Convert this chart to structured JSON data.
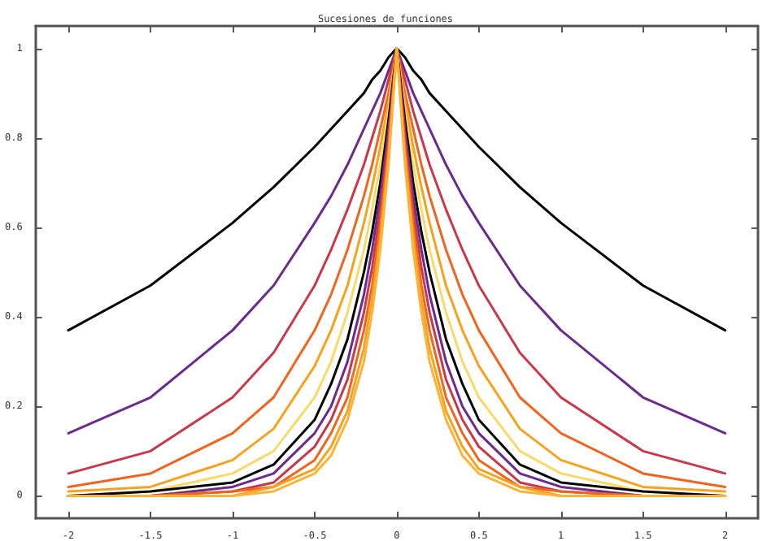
{
  "chart_data": {
    "type": "line",
    "title": "Sucesiones de funciones",
    "x": [
      -2,
      -1.5,
      -1,
      -0.75,
      -0.5,
      -0.4,
      -0.3,
      -0.2,
      -0.15,
      -0.1,
      -0.05,
      0,
      0.05,
      0.1,
      0.15,
      0.2,
      0.3,
      0.4,
      0.5,
      0.75,
      1,
      1.5,
      2
    ],
    "series": [
      {
        "color": "#000000",
        "values": [
          0.37,
          0.47,
          0.61,
          0.69,
          0.78,
          0.82,
          0.86,
          0.9,
          0.93,
          0.95,
          0.98,
          1,
          0.98,
          0.95,
          0.93,
          0.9,
          0.86,
          0.82,
          0.78,
          0.69,
          0.61,
          0.47,
          0.37
        ]
      },
      {
        "color": "#6a2a8e",
        "values": [
          0.14,
          0.22,
          0.37,
          0.47,
          0.61,
          0.67,
          0.74,
          0.82,
          0.86,
          0.9,
          0.95,
          1,
          0.95,
          0.9,
          0.86,
          0.82,
          0.74,
          0.67,
          0.61,
          0.47,
          0.37,
          0.22,
          0.14
        ]
      },
      {
        "color": "#c8384a",
        "values": [
          0.05,
          0.1,
          0.22,
          0.32,
          0.47,
          0.55,
          0.64,
          0.74,
          0.8,
          0.86,
          0.93,
          1,
          0.93,
          0.86,
          0.8,
          0.74,
          0.64,
          0.55,
          0.47,
          0.32,
          0.22,
          0.1,
          0.05
        ]
      },
      {
        "color": "#f0651e",
        "values": [
          0.02,
          0.05,
          0.14,
          0.22,
          0.37,
          0.45,
          0.55,
          0.67,
          0.74,
          0.82,
          0.9,
          1,
          0.9,
          0.82,
          0.74,
          0.67,
          0.55,
          0.45,
          0.37,
          0.22,
          0.14,
          0.05,
          0.02
        ]
      },
      {
        "color": "#f7a21e",
        "values": [
          0.01,
          0.02,
          0.08,
          0.15,
          0.29,
          0.37,
          0.47,
          0.61,
          0.69,
          0.78,
          0.88,
          1,
          0.88,
          0.78,
          0.69,
          0.61,
          0.47,
          0.37,
          0.29,
          0.15,
          0.08,
          0.02,
          0.01
        ]
      },
      {
        "color": "#fbd86a",
        "values": [
          0,
          0.01,
          0.05,
          0.1,
          0.22,
          0.3,
          0.41,
          0.55,
          0.64,
          0.74,
          0.86,
          1,
          0.86,
          0.74,
          0.64,
          0.55,
          0.41,
          0.3,
          0.22,
          0.1,
          0.05,
          0.01,
          0
        ]
      },
      {
        "color": "#000000",
        "values": [
          0,
          0.01,
          0.03,
          0.07,
          0.17,
          0.25,
          0.35,
          0.5,
          0.59,
          0.7,
          0.84,
          1,
          0.84,
          0.7,
          0.59,
          0.5,
          0.35,
          0.25,
          0.17,
          0.07,
          0.03,
          0.01,
          0
        ]
      },
      {
        "color": "#6a2a8e",
        "values": [
          0,
          0,
          0.02,
          0.05,
          0.14,
          0.2,
          0.3,
          0.45,
          0.55,
          0.67,
          0.82,
          1,
          0.82,
          0.67,
          0.55,
          0.45,
          0.3,
          0.2,
          0.14,
          0.05,
          0.02,
          0,
          0
        ]
      },
      {
        "color": "#c8384a",
        "values": [
          0,
          0,
          0.01,
          0.03,
          0.11,
          0.17,
          0.26,
          0.41,
          0.51,
          0.64,
          0.8,
          1,
          0.8,
          0.64,
          0.51,
          0.41,
          0.26,
          0.17,
          0.11,
          0.03,
          0.01,
          0,
          0
        ]
      },
      {
        "color": "#f0651e",
        "values": [
          0,
          0,
          0.01,
          0.02,
          0.08,
          0.14,
          0.22,
          0.37,
          0.47,
          0.61,
          0.78,
          1,
          0.78,
          0.61,
          0.47,
          0.37,
          0.22,
          0.14,
          0.08,
          0.02,
          0.01,
          0,
          0
        ]
      },
      {
        "color": "#f7a21e",
        "values": [
          0,
          0,
          0,
          0.02,
          0.06,
          0.11,
          0.19,
          0.33,
          0.44,
          0.58,
          0.76,
          1,
          0.76,
          0.58,
          0.44,
          0.33,
          0.19,
          0.11,
          0.06,
          0.02,
          0,
          0,
          0
        ]
      },
      {
        "color": "#fbb33a",
        "values": [
          0,
          0,
          0,
          0.01,
          0.05,
          0.09,
          0.17,
          0.3,
          0.41,
          0.55,
          0.74,
          1,
          0.74,
          0.55,
          0.41,
          0.3,
          0.17,
          0.09,
          0.05,
          0.01,
          0,
          0,
          0
        ]
      }
    ],
    "xlim": [
      -2.2,
      2.2
    ],
    "xticks": [
      -2,
      -1.5,
      -1,
      -0.5,
      0,
      0.5,
      1,
      1.5,
      2
    ],
    "ylim": [
      -0.05,
      1.05
    ],
    "yticks": [
      0,
      0.2,
      0.4,
      0.6,
      0.8,
      1
    ],
    "grid": false,
    "marker": "none",
    "line_style": "solid"
  }
}
